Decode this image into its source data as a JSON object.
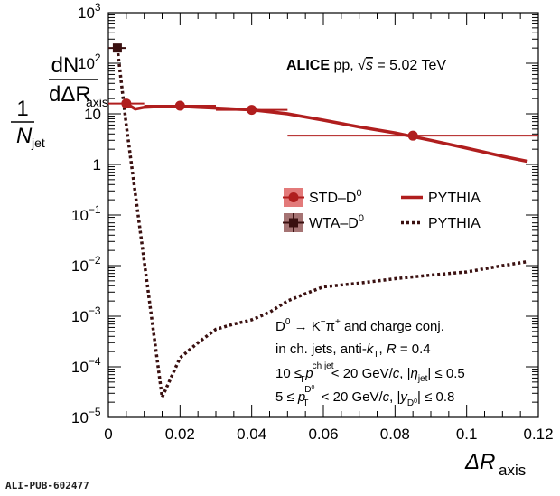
{
  "colors": {
    "std": "#b01e1e",
    "wta": "#3a1010",
    "std_fill": "#e37a7a",
    "wta_fill": "#a57373",
    "axis": "#000000"
  },
  "chart_data": {
    "type": "line",
    "xlim": [
      0,
      0.12
    ],
    "ylim": [
      1e-05,
      1000
    ],
    "yscale": "log",
    "x_ticks": [
      "0",
      "0.02",
      "0.04",
      "0.06",
      "0.08",
      "0.1",
      "0.12"
    ],
    "y_ticks": [
      {
        "base": "10",
        "exp": "3"
      },
      {
        "base": "10",
        "exp": "2"
      },
      {
        "base": "10",
        "exp": ""
      },
      {
        "base": "1",
        "exp": ""
      },
      {
        "base": "10",
        "exp": "−1"
      },
      {
        "base": "10",
        "exp": "−2"
      },
      {
        "base": "10",
        "exp": "−3"
      },
      {
        "base": "10",
        "exp": "−4"
      },
      {
        "base": "10",
        "exp": "−5"
      }
    ],
    "xlabel": {
      "main": "ΔR",
      "sub": "axis"
    },
    "ylabel": {
      "one": "1",
      "n_jet": "N",
      "n_jet_sub": "jet",
      "dN": "dN",
      "dR": "dΔR",
      "dR_sub": "axis"
    },
    "series": [
      {
        "name": "STD–D⁰",
        "kind": "data",
        "points": [
          {
            "x": 0.005,
            "xerr": 0.005,
            "y": 16
          },
          {
            "x": 0.02,
            "xerr": 0.01,
            "y": 14.5
          },
          {
            "x": 0.04,
            "xerr": 0.01,
            "y": 12
          },
          {
            "x": 0.085,
            "xerr": 0.035,
            "y": 3.7
          }
        ]
      },
      {
        "name": "WTA–D⁰",
        "kind": "data",
        "points": [
          {
            "x": 0.0025,
            "xerr": 0.0025,
            "y": 200
          }
        ]
      },
      {
        "name": "PYTHIA",
        "kind": "model-std",
        "x": [
          0.005,
          0.0075,
          0.01,
          0.015,
          0.02,
          0.025,
          0.03,
          0.035,
          0.04,
          0.045,
          0.05,
          0.06,
          0.07,
          0.08,
          0.09,
          0.1,
          0.11,
          0.117
        ],
        "y": [
          16,
          12.5,
          13.5,
          14,
          14,
          13.5,
          13,
          12.5,
          12,
          11,
          10,
          7.5,
          5.5,
          4.2,
          3,
          2.1,
          1.45,
          1.15
        ]
      },
      {
        "name": "PYTHIA",
        "kind": "model-wta",
        "x": [
          0.0025,
          0.005,
          0.015,
          0.02,
          0.025,
          0.03,
          0.035,
          0.04,
          0.045,
          0.05,
          0.055,
          0.06,
          0.07,
          0.08,
          0.09,
          0.1,
          0.11,
          0.117
        ],
        "y": [
          200,
          6,
          2.5e-05,
          0.00015,
          0.0003,
          0.00055,
          0.0007,
          0.00085,
          0.0012,
          0.002,
          0.0028,
          0.0038,
          0.0045,
          0.0055,
          0.0065,
          0.0075,
          0.01,
          0.012
        ]
      }
    ],
    "legend": {
      "placement": "center-right",
      "std_label": "STD–D",
      "std_sup": "0",
      "wta_label": "WTA–D",
      "wta_sup": "0",
      "pythia_solid": "PYTHIA",
      "pythia_dotted": "PYTHIA"
    },
    "annotations": {
      "alice": "ALICE",
      "pp": " pp, ",
      "sqrt": "√",
      "s": "s",
      "energy": " = 5.02 TeV",
      "decay_l1a": "D",
      "decay_l1b": "0",
      "decay_l1c": " → K",
      "decay_l1d": "−",
      "decay_l1e": "π",
      "decay_l1f": "+",
      "decay_l1g": " and charge conj.",
      "jets_a": "in ch. jets, anti-",
      "jets_k": "k",
      "jets_t": "T",
      "jets_b": ", ",
      "jets_r": "R",
      "jets_c": " = 0.4",
      "pt_a": "10 ≤ ",
      "pt_p": "p",
      "pt_sup": "ch jet",
      "pt_sub": "T",
      "pt_b": " < 20 GeV/",
      "pt_c": "c",
      "pt_d": ", |",
      "pt_eta": "η",
      "pt_eta_sub": "jet",
      "pt_e": "| ≤ 0.5",
      "d_a": "5 ≤ ",
      "d_p": "p",
      "d_sup": "D",
      "d_sup0": "0",
      "d_sub": "T",
      "d_b": " < 20 GeV/",
      "d_c": "c",
      "d_d": ", |",
      "d_y": "y",
      "d_y_sub": "D",
      "d_y_sub0": "0",
      "d_e": "| ≤ 0.8"
    }
  },
  "footer": "ALI-PUB-602477"
}
